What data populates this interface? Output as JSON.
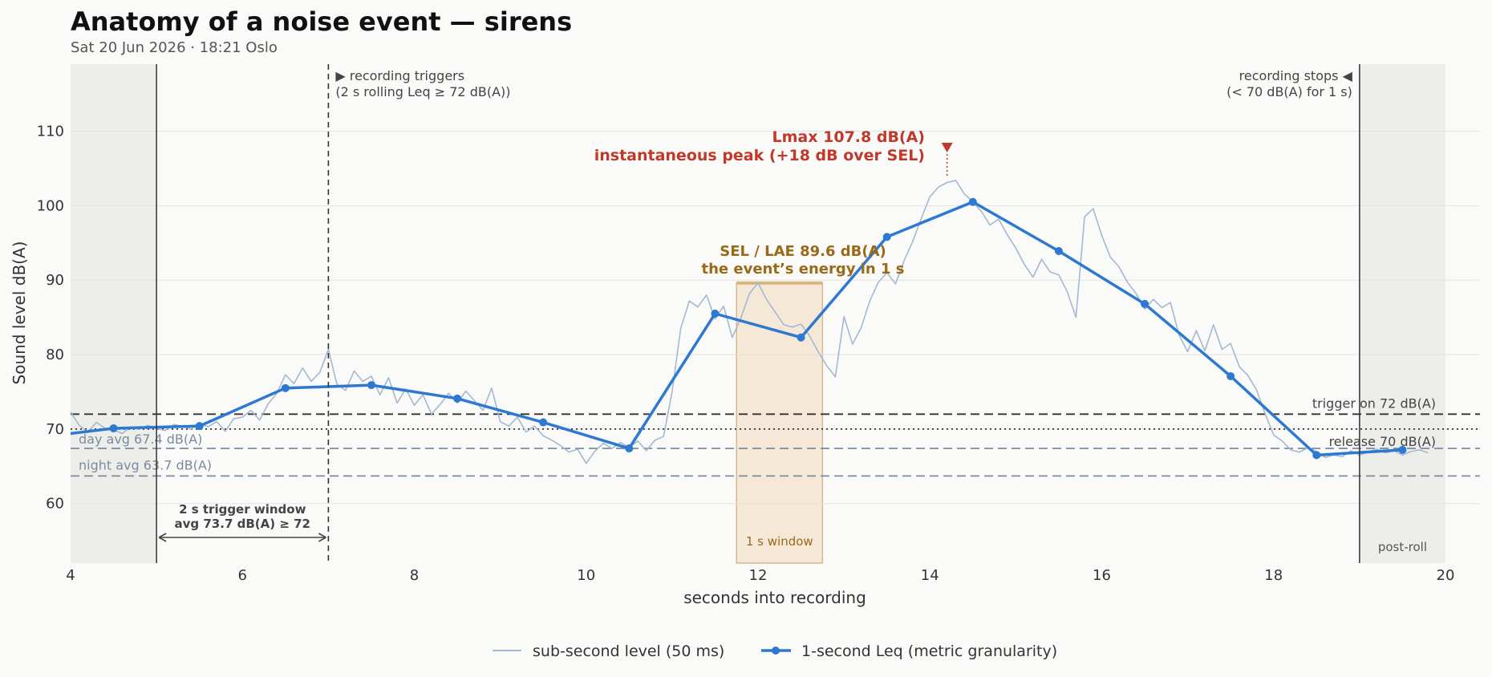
{
  "header": {
    "title": "Anatomy of a noise event — sirens",
    "subtitle": "Sat 20 Jun 2026 · 18:21 Oslo"
  },
  "chart_data": {
    "type": "line",
    "title": "Anatomy of a noise event — sirens",
    "subtitle": "Sat 20 Jun 2026 · 18:21 Oslo",
    "xlabel": "seconds into recording",
    "ylabel": "Sound level  dB(A)",
    "xlim": [
      4,
      20
    ],
    "ylim": [
      52,
      119
    ],
    "xticks": [
      4,
      6,
      8,
      10,
      12,
      14,
      16,
      18,
      20
    ],
    "yticks": [
      60,
      70,
      80,
      90,
      100,
      110
    ],
    "grid": "horizontal",
    "legend_position": "bottom-center",
    "series": [
      {
        "name": "sub-second level (50 ms)",
        "color": "#a3b9d3",
        "kind": "sub-second",
        "x": [
          4.0,
          4.1,
          4.2,
          4.3,
          4.4,
          4.5,
          4.6,
          4.7,
          4.8,
          4.9,
          5.0,
          5.1,
          5.2,
          5.3,
          5.4,
          5.5,
          5.6,
          5.7,
          5.8,
          5.9,
          6.0,
          6.1,
          6.2,
          6.3,
          6.4,
          6.5,
          6.6,
          6.7,
          6.8,
          6.9,
          7.0,
          7.1,
          7.2,
          7.3,
          7.4,
          7.5,
          7.6,
          7.7,
          7.8,
          7.9,
          8.0,
          8.1,
          8.2,
          8.3,
          8.4,
          8.5,
          8.6,
          8.7,
          8.8,
          8.9,
          9.0,
          9.1,
          9.2,
          9.3,
          9.4,
          9.5,
          9.6,
          9.7,
          9.8,
          9.9,
          10.0,
          10.1,
          10.2,
          10.3,
          10.4,
          10.5,
          10.6,
          10.7,
          10.8,
          10.9,
          11.0,
          11.1,
          11.2,
          11.3,
          11.4,
          11.5,
          11.6,
          11.7,
          11.8,
          11.9,
          12.0,
          12.1,
          12.2,
          12.3,
          12.4,
          12.5,
          12.6,
          12.7,
          12.8,
          12.9,
          13.0,
          13.1,
          13.2,
          13.3,
          13.4,
          13.5,
          13.6,
          13.7,
          13.8,
          13.9,
          14.0,
          14.1,
          14.2,
          14.3,
          14.4,
          14.5,
          14.6,
          14.7,
          14.8,
          14.9,
          15.0,
          15.1,
          15.2,
          15.3,
          15.4,
          15.5,
          15.6,
          15.7,
          15.8,
          15.9,
          16.0,
          16.1,
          16.2,
          16.3,
          16.4,
          16.5,
          16.6,
          16.7,
          16.8,
          16.9,
          17.0,
          17.1,
          17.2,
          17.3,
          17.4,
          17.5,
          17.6,
          17.7,
          17.8,
          17.9,
          18.0,
          18.1,
          18.2,
          18.3,
          18.4,
          18.5,
          18.6,
          18.7,
          18.8,
          18.9,
          19.0,
          19.1,
          19.2,
          19.3,
          19.4,
          19.5,
          19.6,
          19.7,
          19.8
        ],
        "y": [
          72.3,
          70.5,
          69.6,
          70.9,
          70.1,
          69.9,
          69.4,
          70.3,
          70.0,
          70.5,
          70.1,
          69.8,
          70.6,
          70.4,
          70.0,
          70.8,
          70.3,
          71.0,
          69.7,
          71.4,
          71.6,
          72.5,
          71.2,
          73.4,
          74.8,
          77.3,
          76.1,
          78.2,
          76.4,
          77.6,
          80.7,
          76.0,
          75.2,
          77.8,
          76.4,
          77.1,
          74.6,
          76.9,
          73.5,
          75.4,
          73.2,
          74.6,
          72.0,
          73.3,
          74.8,
          73.5,
          75.1,
          73.8,
          72.5,
          75.5,
          71.0,
          70.4,
          71.6,
          69.6,
          70.4,
          69.1,
          68.5,
          67.8,
          66.9,
          67.3,
          65.4,
          67.0,
          68.1,
          67.4,
          68.2,
          67.5,
          68.4,
          67.1,
          68.5,
          69.0,
          75.0,
          83.5,
          87.2,
          86.4,
          88.0,
          84.8,
          86.5,
          82.3,
          84.9,
          88.2,
          89.6,
          87.4,
          85.7,
          84.0,
          83.7,
          84.1,
          82.5,
          80.4,
          78.5,
          77.0,
          85.1,
          81.4,
          83.6,
          87.2,
          89.7,
          91.0,
          89.5,
          92.6,
          95.2,
          98.3,
          101.2,
          102.5,
          103.1,
          103.4,
          101.6,
          100.5,
          99.2,
          97.4,
          98.2,
          96.1,
          94.3,
          92.1,
          90.4,
          92.8,
          91.1,
          90.7,
          88.4,
          85.0,
          98.5,
          99.6,
          96.0,
          93.1,
          91.8,
          89.7,
          88.2,
          86.1,
          87.4,
          86.3,
          87.0,
          82.6,
          80.4,
          83.2,
          80.5,
          84.0,
          80.7,
          81.5,
          78.4,
          77.2,
          75.3,
          72.1,
          69.2,
          68.4,
          67.2,
          66.9,
          67.5,
          67.0,
          66.2,
          66.5,
          66.3,
          67.1,
          66.5,
          66.9,
          67.3,
          66.8,
          67.1,
          66.5,
          67.0,
          67.2,
          66.8
        ]
      },
      {
        "name": "1-second Leq (metric granularity)",
        "color": "#2d78d0",
        "kind": "leq",
        "x": [
          4.0,
          4.5,
          5.5,
          6.5,
          7.5,
          8.5,
          9.5,
          10.5,
          11.5,
          12.5,
          13.5,
          14.5,
          15.5,
          16.5,
          17.5,
          18.5,
          19.5
        ],
        "y": [
          69.4,
          70.1,
          70.4,
          75.5,
          75.9,
          74.1,
          70.9,
          67.4,
          85.5,
          82.3,
          95.8,
          100.5,
          93.9,
          86.8,
          77.1,
          66.5,
          67.2
        ]
      }
    ],
    "reference_lines": [
      {
        "label": "trigger on  72 dB(A)",
        "value": 72,
        "style": "dashed",
        "color": "#333333"
      },
      {
        "label": "release  70 dB(A)",
        "value": 70,
        "style": "dotted",
        "color": "#333333"
      },
      {
        "label": "day avg  67.4 dB(A)",
        "value": 67.4,
        "style": "dashed",
        "color": "#7a8ba0"
      },
      {
        "label": "night avg  63.7 dB(A)",
        "value": 63.7,
        "style": "dashed",
        "color": "#7a8ba0"
      }
    ],
    "regions": {
      "preroll": [
        4,
        5
      ],
      "postroll": [
        19,
        20
      ],
      "postroll_label": "post-roll",
      "sel_window": [
        11.75,
        12.75
      ],
      "sel_window_label": "1 s window",
      "sel_value": 89.6
    },
    "markers": {
      "trigger_line_x": 7,
      "stop_line_x": 19,
      "start_line_x": 5,
      "lmax_x": 14.2,
      "lmax_value": 107.8
    },
    "annotations": {
      "trigger_line1": "▶ recording triggers",
      "trigger_line2": "(2 s rolling Leq ≥ 72 dB(A))",
      "stop_line1": "recording stops ◀",
      "stop_line2": "(< 70 dB(A) for 1 s)",
      "lmax_line1": "Lmax  107.8 dB(A)",
      "lmax_line2": "instantaneous peak  (+18 dB over SEL)",
      "sel_line1": "SEL / LAE  89.6 dB(A)",
      "sel_line2": "the event’s energy in 1 s",
      "window_line1": "2 s trigger window",
      "window_line2": "avg 73.7 dB(A) ≥ 72"
    },
    "colors": {
      "sub_second": "#a3b9d3",
      "leq": "#2d78d0",
      "lmax": "#c0392b",
      "sel": "#9a6a1a",
      "sel_fill": "#f5e8d6",
      "sel_border": "#d8b88e",
      "shade": "#edeee9",
      "ref_avg": "#7a8ba0",
      "dark": "#333333"
    }
  }
}
